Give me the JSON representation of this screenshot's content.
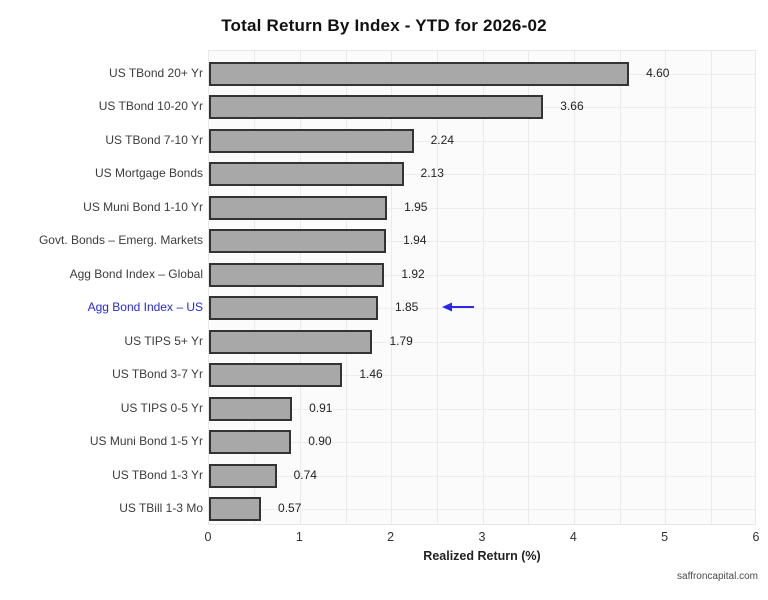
{
  "page": {
    "title": "Total Return By Index - YTD for 2026-02",
    "watermark": "saffroncapital.com"
  },
  "chart_data": {
    "type": "bar",
    "orientation": "horizontal",
    "title": "Total Return By Index - YTD for 2026-02",
    "xlabel": "Realized Return (%)",
    "xlim": [
      0,
      6
    ],
    "x_ticks": [
      "0",
      "1",
      "2",
      "3",
      "4",
      "5",
      "6"
    ],
    "grid": {
      "vertical_step": 0.5,
      "horizontal": "row-centers",
      "grid_on": true
    },
    "categories": [
      "US TBond 20+ Yr",
      "US TBond 10-20 Yr",
      "US TBond 7-10 Yr",
      "US Mortgage Bonds",
      "US Muni Bond 1-10 Yr",
      "Govt. Bonds – Emerg. Markets",
      "Agg Bond Index – Global",
      "Agg Bond Index – US",
      "US TIPS 5+ Yr",
      "US TBond 3-7 Yr",
      "US TIPS 0-5 Yr",
      "US Muni Bond 1-5 Yr",
      "US TBond 1-3 Yr",
      "US TBill 1-3 Mo"
    ],
    "values": [
      4.6,
      3.66,
      2.24,
      2.13,
      1.95,
      1.94,
      1.92,
      1.85,
      1.79,
      1.46,
      0.91,
      0.9,
      0.74,
      0.57
    ],
    "value_labels": [
      "4.60",
      "3.66",
      "2.24",
      "2.13",
      "1.95",
      "1.94",
      "1.92",
      "1.85",
      "1.79",
      "1.46",
      "0.91",
      "0.90",
      "0.74",
      "0.57"
    ],
    "highlight": {
      "index": 7,
      "category": "Agg Bond Index – US",
      "label_color": "#2a2ad4",
      "annotation": "left-arrow",
      "arrow_color": "#2a2ae0"
    },
    "colors": {
      "bar_fill": "#a8a8a8",
      "bar_border": "#333333",
      "panel_bg": "#fbfbfb",
      "panel_border": "#e8e8e8",
      "gridline": "#eaeaea"
    }
  }
}
